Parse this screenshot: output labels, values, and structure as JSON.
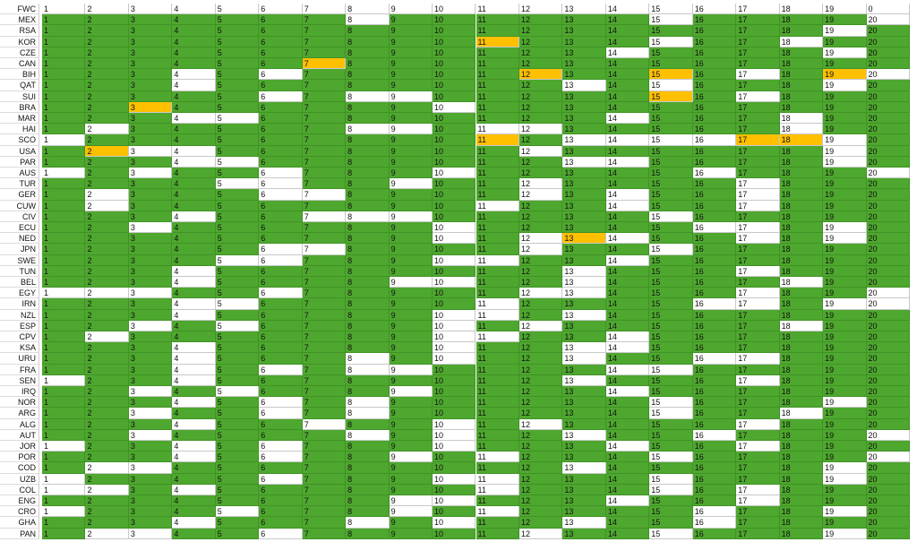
{
  "sheet": {
    "colors": {
      "g": "#4ea72e",
      "w": "#ffffff",
      "o": "#ffc000"
    },
    "rows": [
      {
        "label": "FWC",
        "fill": "wwwwwwwwwwwwwwwwwwww",
        "cells": [
          1,
          2,
          3,
          4,
          5,
          6,
          7,
          8,
          9,
          10,
          11,
          12,
          13,
          14,
          15,
          16,
          17,
          18,
          19,
          0
        ]
      },
      {
        "label": "MEX",
        "fill": "gggggggwggggggwggggw",
        "cells": [
          1,
          2,
          3,
          4,
          5,
          6,
          7,
          8,
          9,
          10,
          11,
          12,
          13,
          14,
          15,
          16,
          17,
          18,
          19,
          20
        ]
      },
      {
        "label": "RSA",
        "fill": "ggggggggggggggggggwg",
        "cells": [
          1,
          2,
          3,
          4,
          5,
          6,
          7,
          8,
          9,
          10,
          11,
          12,
          13,
          14,
          15,
          16,
          17,
          18,
          19,
          20
        ]
      },
      {
        "label": "KOR",
        "fill": "ggggggggggogggwggwgg",
        "cells": [
          1,
          2,
          3,
          4,
          5,
          6,
          7,
          8,
          9,
          10,
          11,
          12,
          13,
          14,
          15,
          16,
          17,
          18,
          19,
          20
        ]
      },
      {
        "label": "CZE",
        "fill": "gggggggggggggwggggwg",
        "cells": [
          1,
          2,
          3,
          4,
          5,
          6,
          7,
          8,
          9,
          10,
          11,
          12,
          13,
          14,
          15,
          16,
          17,
          18,
          19,
          20
        ]
      },
      {
        "label": "CAN",
        "fill": "ggggggoggggggggggggg",
        "cells": [
          1,
          2,
          3,
          4,
          5,
          6,
          7,
          8,
          9,
          10,
          11,
          12,
          13,
          14,
          15,
          16,
          17,
          18,
          19,
          20
        ]
      },
      {
        "label": "BIH",
        "fill": "gggwgwgggggoggogwgow",
        "cells": [
          1,
          2,
          3,
          4,
          5,
          6,
          7,
          8,
          9,
          10,
          11,
          12,
          13,
          14,
          15,
          16,
          17,
          18,
          19,
          20
        ]
      },
      {
        "label": "QAT",
        "fill": "gggwggggggggwgwgggwg",
        "cells": [
          1,
          2,
          3,
          4,
          5,
          6,
          7,
          8,
          9,
          10,
          11,
          12,
          13,
          14,
          15,
          16,
          17,
          18,
          19,
          20
        ]
      },
      {
        "label": "SUI",
        "fill": "gggggwgwwgggggogwggg",
        "cells": [
          1,
          2,
          3,
          4,
          5,
          6,
          7,
          8,
          9,
          10,
          11,
          12,
          13,
          14,
          15,
          16,
          17,
          18,
          19,
          20
        ]
      },
      {
        "label": "BRA",
        "fill": "ggoggggggwgggggggggg",
        "cells": [
          1,
          2,
          3,
          4,
          5,
          6,
          7,
          8,
          9,
          10,
          11,
          12,
          13,
          14,
          15,
          16,
          17,
          18,
          19,
          20
        ]
      },
      {
        "label": "MAR",
        "fill": "gggwwggggggggwgggwgg",
        "cells": [
          1,
          2,
          3,
          4,
          5,
          6,
          7,
          8,
          9,
          10,
          11,
          12,
          13,
          14,
          15,
          16,
          17,
          18,
          19,
          20
        ]
      },
      {
        "label": "HAI",
        "fill": "gwgggggwwgwwgggggwgg",
        "cells": [
          1,
          2,
          3,
          4,
          5,
          6,
          7,
          8,
          9,
          10,
          11,
          12,
          13,
          14,
          15,
          16,
          17,
          18,
          19,
          20
        ]
      },
      {
        "label": "SCO",
        "fill": "wgggggggggogwwwwoowg",
        "cells": [
          1,
          2,
          3,
          4,
          5,
          6,
          7,
          8,
          9,
          10,
          11,
          12,
          13,
          14,
          15,
          16,
          17,
          18,
          19,
          20
        ]
      },
      {
        "label": "USA",
        "fill": "gowwgggggggwggggggwg",
        "cells": [
          1,
          2,
          3,
          4,
          5,
          6,
          7,
          8,
          9,
          10,
          11,
          12,
          13,
          14,
          15,
          16,
          17,
          18,
          19,
          20
        ]
      },
      {
        "label": "PAR",
        "fill": "gggwwgggggggwwggggwg",
        "cells": [
          1,
          2,
          3,
          4,
          5,
          6,
          7,
          8,
          9,
          10,
          11,
          12,
          13,
          14,
          15,
          16,
          17,
          18,
          19,
          20
        ]
      },
      {
        "label": "AUS",
        "fill": "wgwggwgggwgggggwgggw",
        "cells": [
          1,
          2,
          3,
          4,
          5,
          6,
          7,
          8,
          9,
          10,
          11,
          12,
          13,
          14,
          15,
          16,
          17,
          18,
          19,
          20
        ]
      },
      {
        "label": "TUR",
        "fill": "ggggwwggwggwggggwggg",
        "cells": [
          1,
          2,
          3,
          4,
          5,
          6,
          7,
          8,
          9,
          10,
          11,
          12,
          13,
          14,
          15,
          16,
          17,
          18,
          19,
          20
        ]
      },
      {
        "label": "GER",
        "fill": "gwgggwwggggwgwggwggg",
        "cells": [
          1,
          2,
          3,
          4,
          5,
          6,
          7,
          8,
          9,
          10,
          11,
          12,
          13,
          14,
          15,
          16,
          17,
          18,
          19,
          20
        ]
      },
      {
        "label": "CUW",
        "fill": "gwggggggggwggwggwggg",
        "cells": [
          1,
          2,
          3,
          4,
          5,
          6,
          7,
          8,
          9,
          10,
          11,
          12,
          13,
          14,
          15,
          16,
          17,
          18,
          19,
          20
        ]
      },
      {
        "label": "CIV",
        "fill": "gggwggwwwgggggwggggg",
        "cells": [
          1,
          2,
          3,
          4,
          5,
          6,
          7,
          8,
          9,
          10,
          11,
          12,
          13,
          14,
          15,
          16,
          17,
          18,
          19,
          20
        ]
      },
      {
        "label": "ECU",
        "fill": "ggwggggggwgggggwwgwg",
        "cells": [
          1,
          2,
          3,
          4,
          5,
          6,
          7,
          8,
          9,
          10,
          11,
          12,
          13,
          14,
          15,
          16,
          17,
          18,
          19,
          20
        ]
      },
      {
        "label": "NED",
        "fill": "gggggggggwgwowggwgwg",
        "cells": [
          1,
          2,
          3,
          4,
          5,
          6,
          7,
          8,
          9,
          10,
          11,
          12,
          13,
          14,
          15,
          16,
          17,
          18,
          19,
          20
        ]
      },
      {
        "label": "JPN",
        "fill": "gggggwwggggwggwggggg",
        "cells": [
          1,
          2,
          3,
          4,
          5,
          6,
          7,
          8,
          9,
          10,
          11,
          12,
          13,
          14,
          15,
          16,
          17,
          18,
          19,
          20
        ]
      },
      {
        "label": "SWE",
        "fill": "ggggwwgggwwggwgggggg",
        "cells": [
          1,
          2,
          3,
          4,
          5,
          6,
          7,
          8,
          9,
          10,
          11,
          12,
          13,
          14,
          15,
          16,
          17,
          18,
          19,
          20
        ]
      },
      {
        "label": "TUN",
        "fill": "gggwggggggggwgggwggg",
        "cells": [
          1,
          2,
          3,
          4,
          5,
          6,
          7,
          8,
          9,
          10,
          11,
          12,
          13,
          14,
          15,
          16,
          17,
          18,
          19,
          20
        ]
      },
      {
        "label": "BEL",
        "fill": "gggwggggwwggwggggwgg",
        "cells": [
          1,
          2,
          3,
          4,
          5,
          6,
          7,
          8,
          9,
          10,
          11,
          12,
          13,
          14,
          15,
          16,
          17,
          18,
          19,
          20
        ]
      },
      {
        "label": "EGY",
        "fill": "wwwggwgggggwwgggwggw",
        "cells": [
          1,
          2,
          3,
          4,
          5,
          6,
          7,
          8,
          9,
          10,
          11,
          12,
          13,
          14,
          15,
          16,
          17,
          18,
          19,
          20
        ]
      },
      {
        "label": "IRN",
        "fill": "gggwwgggggwggggwwgww",
        "cells": [
          1,
          2,
          3,
          4,
          5,
          6,
          7,
          8,
          9,
          10,
          11,
          12,
          13,
          14,
          15,
          16,
          17,
          18,
          19,
          20
        ]
      },
      {
        "label": "NZL",
        "fill": "gggwgggggwwgwggggggg",
        "cells": [
          1,
          2,
          3,
          4,
          5,
          6,
          7,
          8,
          9,
          10,
          11,
          12,
          13,
          14,
          15,
          16,
          17,
          18,
          19,
          20
        ]
      },
      {
        "label": "ESP",
        "fill": "ggwgwggggwgwgggggwgg",
        "cells": [
          1,
          2,
          3,
          4,
          5,
          6,
          7,
          8,
          9,
          10,
          11,
          12,
          13,
          14,
          15,
          16,
          17,
          18,
          19,
          20
        ]
      },
      {
        "label": "CPV",
        "fill": "gwgggggggwwggwgggggg",
        "cells": [
          1,
          2,
          3,
          4,
          5,
          6,
          7,
          8,
          9,
          10,
          11,
          12,
          13,
          14,
          15,
          16,
          17,
          18,
          19,
          20
        ]
      },
      {
        "label": "KSA",
        "fill": "gggwgggggwggwwgggggg",
        "cells": [
          1,
          2,
          3,
          4,
          5,
          6,
          7,
          8,
          9,
          10,
          11,
          12,
          13,
          14,
          15,
          16,
          17,
          18,
          19,
          20
        ]
      },
      {
        "label": "URU",
        "fill": "gggwgggwgwggwggwwggg",
        "cells": [
          1,
          2,
          3,
          4,
          5,
          6,
          7,
          8,
          9,
          10,
          11,
          12,
          13,
          14,
          15,
          16,
          17,
          18,
          19,
          20
        ]
      },
      {
        "label": "FRA",
        "fill": "gggwgwgwwggggwwggggg",
        "cells": [
          1,
          2,
          3,
          4,
          5,
          6,
          7,
          8,
          9,
          10,
          11,
          12,
          13,
          14,
          15,
          16,
          17,
          18,
          19,
          20
        ]
      },
      {
        "label": "SEN",
        "fill": "wggwggggggggwgggwggg",
        "cells": [
          1,
          2,
          3,
          4,
          5,
          6,
          7,
          8,
          9,
          10,
          11,
          12,
          13,
          14,
          15,
          16,
          17,
          18,
          19,
          20
        ]
      },
      {
        "label": "IRQ",
        "fill": "ggwgwgggwggggwgggggg",
        "cells": [
          1,
          2,
          3,
          4,
          5,
          6,
          7,
          8,
          9,
          10,
          11,
          12,
          13,
          14,
          15,
          16,
          17,
          18,
          19,
          20
        ]
      },
      {
        "label": "NOR",
        "fill": "gggwgwgwggggggwgggwg",
        "cells": [
          1,
          2,
          3,
          4,
          5,
          6,
          7,
          8,
          9,
          10,
          11,
          12,
          13,
          14,
          15,
          16,
          17,
          18,
          19,
          20
        ]
      },
      {
        "label": "ARG",
        "fill": "ggwggwgwggggggwggwgg",
        "cells": [
          1,
          2,
          3,
          4,
          5,
          6,
          7,
          8,
          9,
          10,
          11,
          12,
          13,
          14,
          15,
          16,
          17,
          18,
          19,
          20
        ]
      },
      {
        "label": "ALG",
        "fill": "gggwggwggwgwggggwggg",
        "cells": [
          1,
          2,
          3,
          4,
          5,
          6,
          7,
          8,
          9,
          10,
          11,
          12,
          13,
          14,
          15,
          16,
          17,
          18,
          19,
          20
        ]
      },
      {
        "label": "AUT",
        "fill": "ggwggggwgwggwggwgggw",
        "cells": [
          1,
          2,
          3,
          4,
          5,
          6,
          7,
          8,
          9,
          10,
          11,
          12,
          13,
          14,
          15,
          16,
          17,
          18,
          19,
          20
        ]
      },
      {
        "label": "JOR",
        "fill": "wggwgwgggwgggwggwggg",
        "cells": [
          1,
          2,
          3,
          4,
          5,
          6,
          7,
          8,
          9,
          10,
          11,
          12,
          13,
          14,
          15,
          16,
          17,
          18,
          19,
          20
        ]
      },
      {
        "label": "POR",
        "fill": "gggwgwggwgwgggwggggw",
        "cells": [
          1,
          2,
          3,
          4,
          5,
          6,
          7,
          8,
          9,
          10,
          11,
          12,
          13,
          14,
          15,
          16,
          17,
          18,
          19,
          20
        ]
      },
      {
        "label": "COD",
        "fill": "gwwgggggggggwgggggwg",
        "cells": [
          1,
          2,
          3,
          4,
          5,
          6,
          7,
          8,
          9,
          10,
          11,
          12,
          13,
          14,
          15,
          16,
          17,
          18,
          19,
          20
        ]
      },
      {
        "label": "UZB",
        "fill": "wggggwgggwwgggwgggwg",
        "cells": [
          1,
          2,
          3,
          4,
          5,
          6,
          7,
          8,
          9,
          10,
          11,
          12,
          13,
          14,
          15,
          16,
          17,
          18,
          19,
          20
        ]
      },
      {
        "label": "COL",
        "fill": "wwgwggggggwgggwgwggg",
        "cells": [
          1,
          2,
          3,
          4,
          5,
          6,
          7,
          8,
          9,
          10,
          11,
          12,
          13,
          14,
          15,
          16,
          17,
          18,
          19,
          20
        ]
      },
      {
        "label": "ENG",
        "fill": "ggggggggwwgggwggwggg",
        "cells": [
          1,
          2,
          3,
          4,
          5,
          6,
          7,
          8,
          9,
          10,
          11,
          12,
          13,
          14,
          15,
          16,
          17,
          18,
          19,
          20
        ]
      },
      {
        "label": "CRO",
        "fill": "wgggwgggwgwggggwggwg",
        "cells": [
          1,
          2,
          3,
          4,
          5,
          6,
          7,
          8,
          9,
          10,
          11,
          12,
          13,
          14,
          15,
          16,
          17,
          18,
          19,
          20
        ]
      },
      {
        "label": "GHA",
        "fill": "gggwgggwgwggwggwgggg",
        "cells": [
          1,
          2,
          3,
          4,
          5,
          6,
          7,
          8,
          9,
          10,
          11,
          12,
          13,
          14,
          15,
          16,
          17,
          18,
          19,
          20
        ]
      },
      {
        "label": "PAN",
        "fill": "gwwggwgggggwggwgggwg",
        "cells": [
          1,
          2,
          3,
          4,
          5,
          6,
          7,
          8,
          9,
          10,
          11,
          12,
          13,
          14,
          15,
          16,
          17,
          18,
          19,
          20
        ]
      }
    ]
  }
}
